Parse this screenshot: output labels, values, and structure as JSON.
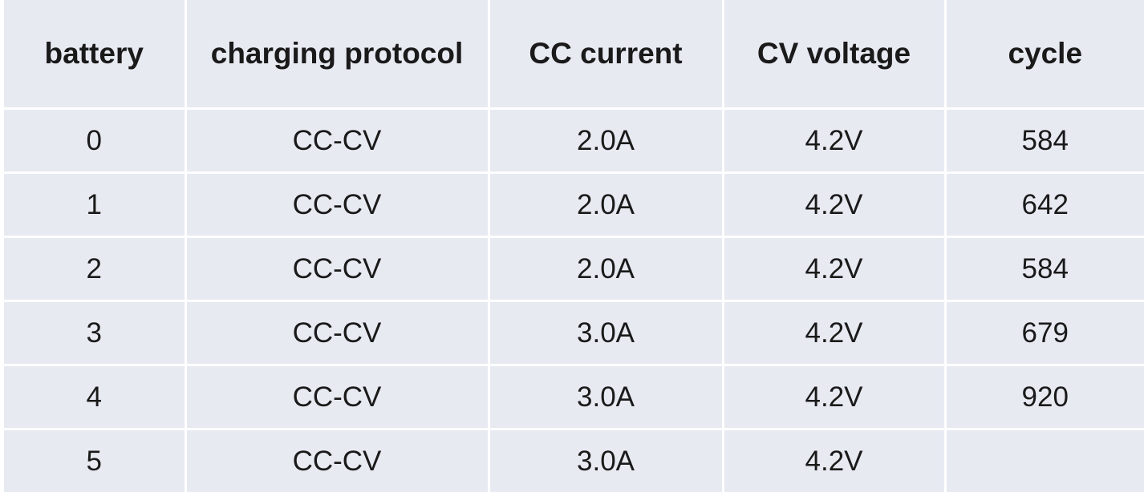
{
  "table": {
    "headers": [
      "battery",
      "charging protocol",
      "CC current",
      "CV voltage",
      "cycle"
    ],
    "rows": [
      [
        "0",
        "CC-CV",
        "2.0A",
        "4.2V",
        "584"
      ],
      [
        "1",
        "CC-CV",
        "2.0A",
        "4.2V",
        "642"
      ],
      [
        "2",
        "CC-CV",
        "2.0A",
        "4.2V",
        "584"
      ],
      [
        "3",
        "CC-CV",
        "3.0A",
        "4.2V",
        "679"
      ],
      [
        "4",
        "CC-CV",
        "3.0A",
        "4.2V",
        "920"
      ],
      [
        "5",
        "CC-CV",
        "3.0A",
        "4.2V",
        ""
      ]
    ]
  },
  "colors": {
    "cell_background": "#e8eaf2",
    "grid_lines": "#ffffff",
    "text": "#1a1a1a"
  }
}
